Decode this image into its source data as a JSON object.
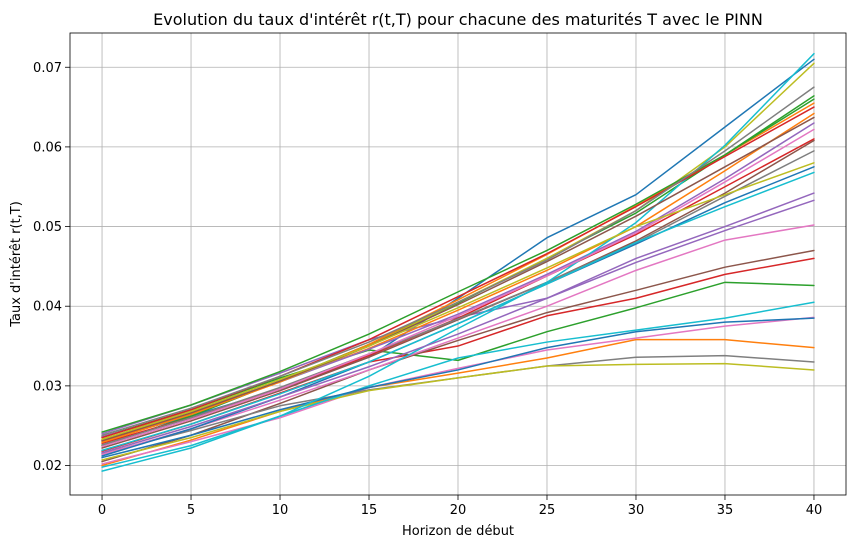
{
  "chart_data": {
    "type": "line",
    "title": "Evolution du taux d'intérêt r(t,T) pour chacune des maturités T avec le PINN",
    "xlabel": "Horizon de début",
    "ylabel": "Taux d'intérêt r(t,T)",
    "xlim": [
      -1.8,
      41.8
    ],
    "ylim": [
      0.0163,
      0.0743
    ],
    "x_ticks": [
      0,
      5,
      10,
      15,
      20,
      25,
      30,
      35,
      40
    ],
    "x_tick_labels": [
      "0",
      "5",
      "10",
      "15",
      "20",
      "25",
      "30",
      "35",
      "40"
    ],
    "y_ticks": [
      0.02,
      0.03,
      0.04,
      0.05,
      0.06,
      0.07
    ],
    "y_tick_labels": [
      "0.02",
      "0.03",
      "0.04",
      "0.05",
      "0.06",
      "0.07"
    ],
    "grid": true,
    "legend": false,
    "x": [
      0,
      5,
      10,
      15,
      20,
      25,
      30,
      35,
      40
    ],
    "series": [
      {
        "color": "#1f77b4",
        "values": [
          0.0232,
          0.0262,
          0.0296,
          0.0336,
          0.041,
          0.0486,
          0.054,
          0.0625,
          0.071
        ]
      },
      {
        "color": "#ff7f0e",
        "values": [
          0.02,
          0.0232,
          0.0268,
          0.0298,
          0.0316,
          0.0335,
          0.0358,
          0.0358,
          0.0348
        ]
      },
      {
        "color": "#2ca02c",
        "values": [
          0.0236,
          0.027,
          0.031,
          0.0345,
          0.0332,
          0.0368,
          0.0398,
          0.043,
          0.0426
        ]
      },
      {
        "color": "#d62728",
        "values": [
          0.0218,
          0.0252,
          0.0291,
          0.033,
          0.035,
          0.0388,
          0.041,
          0.044,
          0.046
        ]
      },
      {
        "color": "#9467bd",
        "values": [
          0.024,
          0.0276,
          0.0316,
          0.0358,
          0.0386,
          0.041,
          0.046,
          0.05,
          0.0542
        ]
      },
      {
        "color": "#8c564b",
        "values": [
          0.0205,
          0.0238,
          0.0278,
          0.032,
          0.0357,
          0.0392,
          0.042,
          0.0449,
          0.047
        ]
      },
      {
        "color": "#e377c2",
        "values": [
          0.0202,
          0.023,
          0.026,
          0.0298,
          0.0322,
          0.0345,
          0.036,
          0.0375,
          0.0386
        ]
      },
      {
        "color": "#7f7f7f",
        "values": [
          0.0215,
          0.0244,
          0.0275,
          0.0295,
          0.031,
          0.0325,
          0.0336,
          0.0338,
          0.033
        ]
      },
      {
        "color": "#bcbd22",
        "values": [
          0.0207,
          0.0235,
          0.0268,
          0.0294,
          0.031,
          0.0325,
          0.0327,
          0.0328,
          0.032
        ]
      },
      {
        "color": "#17becf",
        "values": [
          0.0193,
          0.0222,
          0.0262,
          0.03,
          0.0335,
          0.0355,
          0.037,
          0.0385,
          0.0405
        ]
      },
      {
        "color": "#1f77b4",
        "values": [
          0.021,
          0.0238,
          0.027,
          0.0298,
          0.032,
          0.0348,
          0.0368,
          0.038,
          0.0385
        ]
      },
      {
        "color": "#ff7f0e",
        "values": [
          0.023,
          0.0265,
          0.0305,
          0.0347,
          0.0395,
          0.0445,
          0.05,
          0.057,
          0.0642
        ]
      },
      {
        "color": "#2ca02c",
        "values": [
          0.0225,
          0.0262,
          0.0306,
          0.0352,
          0.0404,
          0.046,
          0.0517,
          0.059,
          0.0664
        ]
      },
      {
        "color": "#d62728",
        "values": [
          0.0228,
          0.026,
          0.0296,
          0.0338,
          0.0385,
          0.0438,
          0.049,
          0.055,
          0.061
        ]
      },
      {
        "color": "#9467bd",
        "values": [
          0.0236,
          0.0268,
          0.0305,
          0.0346,
          0.039,
          0.044,
          0.0494,
          0.056,
          0.063
        ]
      },
      {
        "color": "#8c564b",
        "values": [
          0.0222,
          0.0256,
          0.0294,
          0.0336,
          0.0383,
          0.043,
          0.0482,
          0.0542,
          0.0608
        ]
      },
      {
        "color": "#e377c2",
        "values": [
          0.0214,
          0.0246,
          0.0282,
          0.032,
          0.036,
          0.04,
          0.0445,
          0.0483,
          0.0502
        ]
      },
      {
        "color": "#7f7f7f",
        "values": [
          0.0226,
          0.026,
          0.0298,
          0.034,
          0.0384,
          0.043,
          0.048,
          0.0538,
          0.0595
        ]
      },
      {
        "color": "#bcbd22",
        "values": [
          0.0232,
          0.0266,
          0.0305,
          0.035,
          0.0405,
          0.046,
          0.052,
          0.06,
          0.0705
        ]
      },
      {
        "color": "#17becf",
        "values": [
          0.0198,
          0.0225,
          0.0262,
          0.0312,
          0.0372,
          0.043,
          0.0505,
          0.0602,
          0.0717
        ]
      },
      {
        "color": "#1f77b4",
        "values": [
          0.0212,
          0.0246,
          0.0286,
          0.033,
          0.0378,
          0.0428,
          0.0478,
          0.053,
          0.0575
        ]
      },
      {
        "color": "#ff7f0e",
        "values": [
          0.0229,
          0.0264,
          0.0305,
          0.0352,
          0.0408,
          0.0465,
          0.0526,
          0.059,
          0.0655
        ]
      },
      {
        "color": "#2ca02c",
        "values": [
          0.0242,
          0.0276,
          0.0318,
          0.0365,
          0.0418,
          0.047,
          0.0528,
          0.059,
          0.066
        ]
      },
      {
        "color": "#d62728",
        "values": [
          0.0235,
          0.027,
          0.0312,
          0.0358,
          0.0412,
          0.0466,
          0.0525,
          0.0588,
          0.065
        ]
      },
      {
        "color": "#9467bd",
        "values": [
          0.0216,
          0.0249,
          0.0286,
          0.0324,
          0.0365,
          0.041,
          0.0455,
          0.0495,
          0.0533
        ]
      },
      {
        "color": "#8c564b",
        "values": [
          0.0231,
          0.0266,
          0.0306,
          0.035,
          0.0402,
          0.0456,
          0.0513,
          0.0575,
          0.0637
        ]
      },
      {
        "color": "#e377c2",
        "values": [
          0.0224,
          0.0258,
          0.0296,
          0.034,
          0.0388,
          0.0438,
          0.0492,
          0.0556,
          0.0622
        ]
      },
      {
        "color": "#7f7f7f",
        "values": [
          0.0238,
          0.0272,
          0.0312,
          0.0355,
          0.0405,
          0.0458,
          0.052,
          0.0595,
          0.0675
        ]
      },
      {
        "color": "#bcbd22",
        "values": [
          0.0233,
          0.0268,
          0.0308,
          0.035,
          0.0398,
          0.0448,
          0.05,
          0.054,
          0.058
        ]
      },
      {
        "color": "#17becf",
        "values": [
          0.0219,
          0.0252,
          0.029,
          0.033,
          0.0378,
          0.0428,
          0.048,
          0.0525,
          0.0568
        ]
      }
    ]
  }
}
